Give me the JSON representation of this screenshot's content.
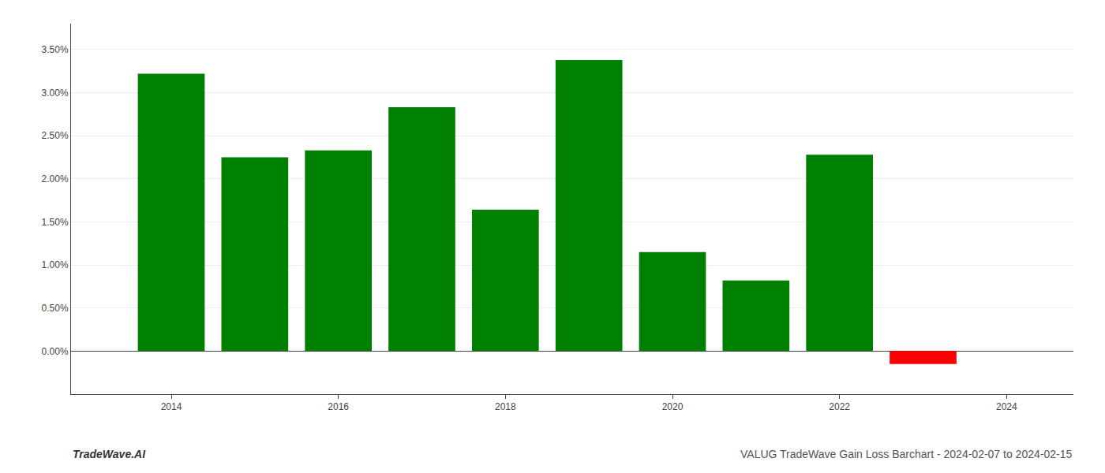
{
  "chart_data": {
    "type": "bar",
    "x": [
      2014,
      2015,
      2016,
      2017,
      2018,
      2019,
      2020,
      2021,
      2022,
      2023
    ],
    "values": [
      0.0322,
      0.0225,
      0.0233,
      0.0283,
      0.0164,
      0.0338,
      0.0115,
      0.0082,
      0.0228,
      -0.0015
    ],
    "colors": [
      "#008000",
      "#008000",
      "#008000",
      "#008000",
      "#008000",
      "#008000",
      "#008000",
      "#008000",
      "#008000",
      "#ff0000"
    ],
    "xlim": [
      2012.8,
      2024.8
    ],
    "xticks": [
      2014,
      2016,
      2018,
      2020,
      2022,
      2024
    ],
    "ylim": [
      -0.005,
      0.038
    ],
    "yticks": [
      {
        "value": 0.0,
        "label": "0.00%"
      },
      {
        "value": 0.005,
        "label": "0.50%"
      },
      {
        "value": 0.01,
        "label": "1.00%"
      },
      {
        "value": 0.015,
        "label": "1.50%"
      },
      {
        "value": 0.02,
        "label": "2.00%"
      },
      {
        "value": 0.025,
        "label": "2.50%"
      },
      {
        "value": 0.03,
        "label": "3.00%"
      },
      {
        "value": 0.035,
        "label": "3.50%"
      }
    ],
    "grid": true,
    "annotations": [
      "TradeWave.AI",
      "VALUG TradeWave Gain Loss Barchart - 2024-02-07 to 2024-02-15"
    ]
  }
}
